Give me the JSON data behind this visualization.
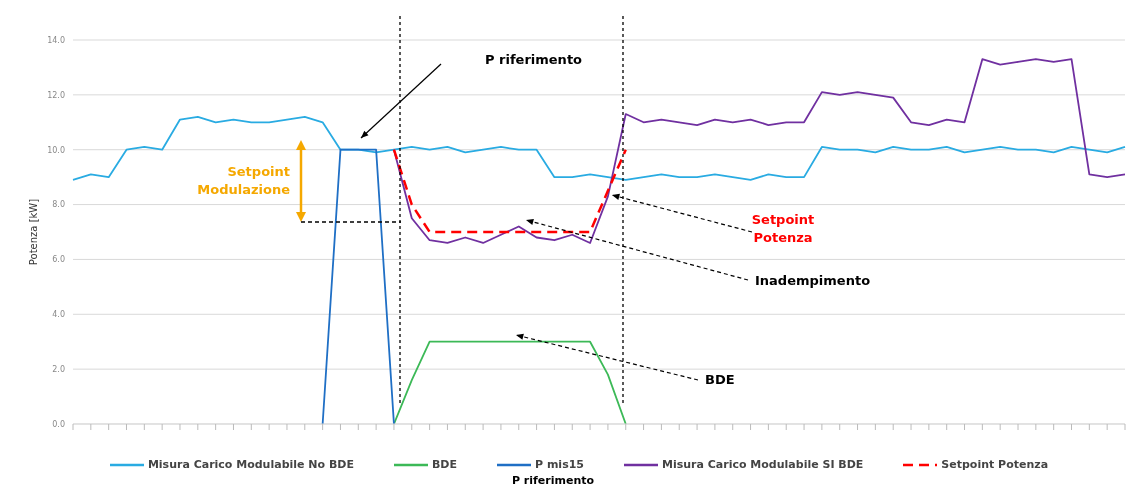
{
  "chart_data": {
    "type": "line",
    "ylabel": "Potenza [kW]",
    "categories": [
      null,
      null,
      null,
      null,
      null,
      null,
      null,
      null,
      null,
      null,
      null,
      null,
      null,
      null,
      null,
      null,
      null,
      null,
      null,
      null,
      null,
      null,
      null,
      null,
      null,
      null,
      null,
      null,
      null,
      null,
      null,
      null,
      null,
      null,
      null,
      null,
      null,
      null,
      null,
      null,
      null,
      null,
      null,
      null,
      null,
      null,
      null,
      null,
      null,
      null,
      null,
      null,
      null,
      null,
      null,
      null,
      null,
      null,
      null,
      null
    ],
    "ylim": [
      0,
      14
    ],
    "yticks": [
      {
        "value": 0,
        "label": "0.0"
      },
      {
        "value": 2,
        "label": "2.0"
      },
      {
        "value": 4,
        "label": "4.0"
      },
      {
        "value": 6,
        "label": "6.0"
      },
      {
        "value": 8,
        "label": "8.0"
      },
      {
        "value": 10,
        "label": "10.0"
      },
      {
        "value": 12,
        "label": "12.0"
      },
      {
        "value": 14,
        "label": "14.0"
      }
    ],
    "grid": "y",
    "legend": "bottom",
    "marker": "none",
    "series": [
      {
        "name": "Misura Carico Modulabile No BDE",
        "color": "#29abe2",
        "line_style": "solid",
        "values": [
          8.9,
          9.1,
          9.0,
          10.0,
          10.1,
          10.0,
          11.1,
          11.2,
          11.0,
          11.1,
          11.0,
          11.0,
          11.1,
          11.2,
          11.0,
          10.0,
          10.0,
          9.9,
          10.0,
          10.1,
          10.0,
          10.1,
          9.9,
          10.0,
          10.1,
          10.0,
          10.0,
          9.0,
          9.0,
          9.1,
          9.0,
          8.9,
          9.0,
          9.1,
          9.0,
          9.0,
          9.1,
          9.0,
          8.9,
          9.1,
          9.0,
          9.0,
          10.1,
          10.0,
          10.0,
          9.9,
          10.1,
          10.0,
          10.0,
          10.1,
          9.9,
          10.0,
          10.1,
          10.0,
          10.0,
          9.9,
          10.1,
          10.0,
          9.9,
          10.1
        ]
      },
      {
        "name": "BDE",
        "color": "#3cb957",
        "line_style": "solid",
        "values": [
          null,
          null,
          null,
          null,
          null,
          null,
          null,
          null,
          null,
          null,
          null,
          null,
          null,
          null,
          null,
          null,
          null,
          null,
          0,
          1.6,
          3.0,
          3.0,
          3.0,
          3.0,
          3.0,
          3.0,
          3.0,
          3.0,
          3.0,
          3.0,
          1.8,
          0,
          null,
          null,
          null,
          null,
          null,
          null,
          null,
          null,
          null,
          null,
          null,
          null,
          null,
          null,
          null,
          null,
          null,
          null,
          null,
          null,
          null,
          null,
          null,
          null,
          null,
          null,
          null,
          null
        ]
      },
      {
        "name": "P mis15",
        "color": "#1f6fc5",
        "line_style": "solid",
        "values": [
          null,
          null,
          null,
          null,
          null,
          null,
          null,
          null,
          null,
          null,
          null,
          null,
          null,
          null,
          0,
          10.0,
          10.0,
          10.0,
          0,
          null,
          null,
          null,
          null,
          null,
          null,
          null,
          null,
          null,
          null,
          null,
          null,
          null,
          null,
          null,
          null,
          null,
          null,
          null,
          null,
          null,
          null,
          null,
          null,
          null,
          null,
          null,
          null,
          null,
          null,
          null,
          null,
          null,
          null,
          null,
          null,
          null,
          null,
          null,
          null,
          null
        ]
      },
      {
        "name": "Misura Carico Modulabile SI BDE",
        "color": "#7030a0",
        "line_style": "solid",
        "values": [
          null,
          null,
          null,
          null,
          null,
          null,
          null,
          null,
          null,
          null,
          null,
          null,
          null,
          null,
          null,
          null,
          null,
          null,
          10.0,
          7.5,
          6.7,
          6.6,
          6.8,
          6.6,
          6.9,
          7.2,
          6.8,
          6.7,
          6.9,
          6.6,
          8.3,
          11.3,
          11.0,
          11.1,
          11.0,
          10.9,
          11.1,
          11.0,
          11.1,
          10.9,
          11.0,
          11.0,
          12.1,
          12.0,
          12.1,
          12.0,
          11.9,
          11.0,
          10.9,
          11.1,
          11.0,
          13.3,
          13.1,
          13.2,
          13.3,
          13.2,
          13.3,
          9.1,
          9.0,
          9.1
        ]
      },
      {
        "name": "Setpoint Potenza",
        "color": "#ff0000",
        "line_style": "dashed",
        "values": [
          null,
          null,
          null,
          null,
          null,
          null,
          null,
          null,
          null,
          null,
          null,
          null,
          null,
          null,
          null,
          null,
          null,
          null,
          10.0,
          8.0,
          7.0,
          7.0,
          7.0,
          7.0,
          7.0,
          7.0,
          7.0,
          7.0,
          7.0,
          7.0,
          8.5,
          10.0,
          null,
          null,
          null,
          null,
          null,
          null,
          null,
          null,
          null,
          null,
          null,
          null,
          null,
          null,
          null,
          null,
          null,
          null,
          null,
          null,
          null,
          null,
          null,
          null,
          null,
          null,
          null,
          null
        ]
      }
    ],
    "annotations": [
      "P riferimento",
      "Setpoint Modulazione",
      "Setpoint Potenza",
      "Inadempimento",
      "BDE",
      "P riferimento"
    ]
  }
}
